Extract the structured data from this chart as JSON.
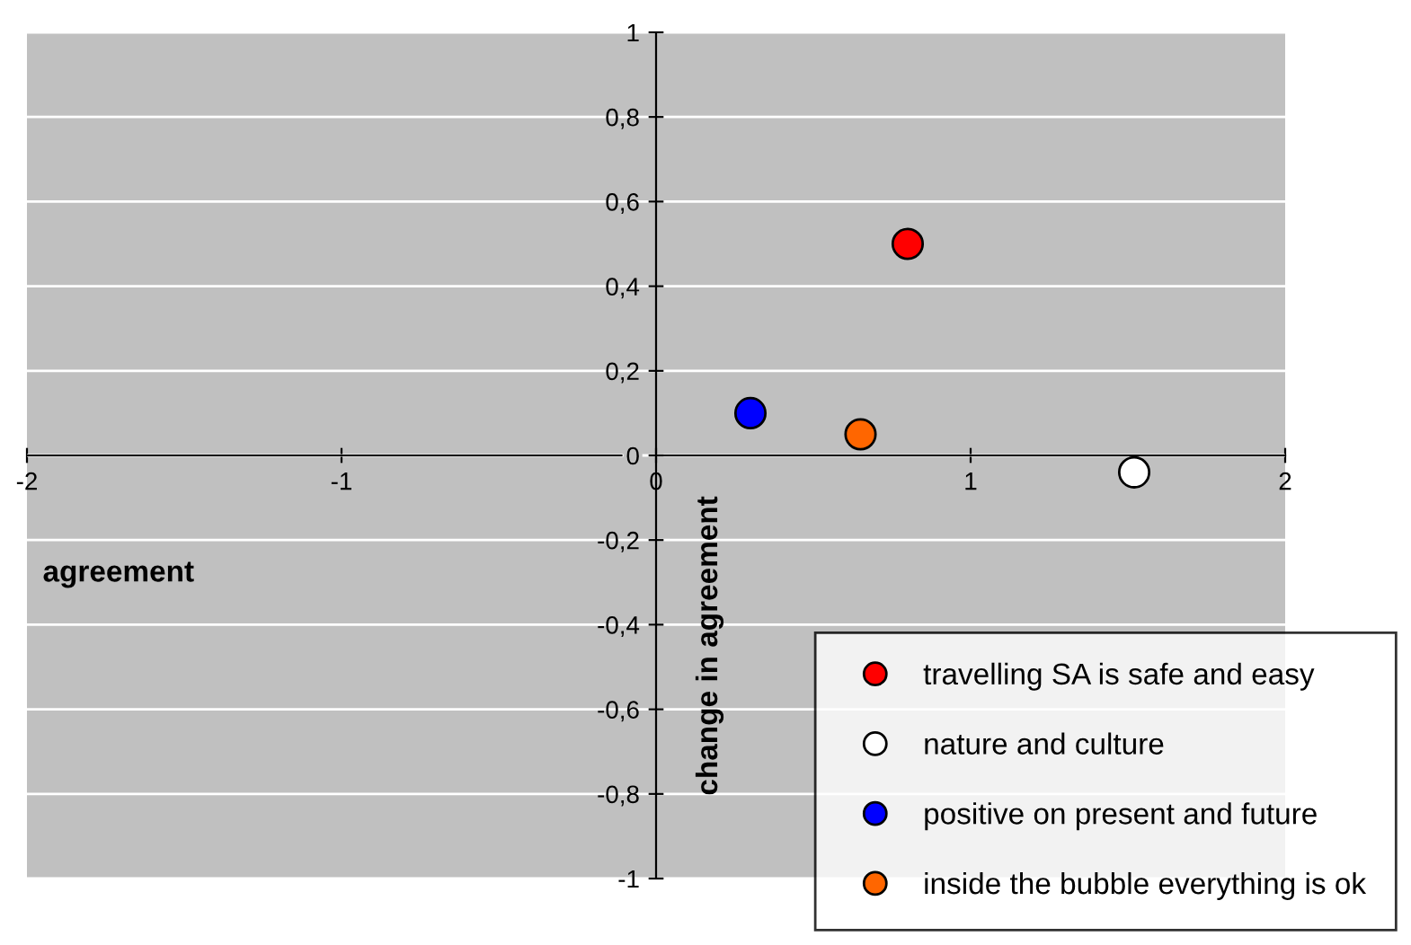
{
  "chart_data": {
    "type": "scatter",
    "xlabel": "agreement",
    "ylabel": "change in agreement",
    "xlim": [
      -2,
      2
    ],
    "ylim": [
      -1,
      1
    ],
    "xticks": [
      -2,
      -1,
      0,
      1,
      2
    ],
    "yticks": [
      {
        "value": -1,
        "label": "-1"
      },
      {
        "value": -0.8,
        "label": "-0,8"
      },
      {
        "value": -0.6,
        "label": "-0,6"
      },
      {
        "value": -0.4,
        "label": "-0,4"
      },
      {
        "value": -0.2,
        "label": "-0,2"
      },
      {
        "value": 0,
        "label": "0"
      },
      {
        "value": 0.2,
        "label": "0,2"
      },
      {
        "value": 0.4,
        "label": "0,4"
      },
      {
        "value": 0.6,
        "label": "0,6"
      },
      {
        "value": 0.8,
        "label": "0,8"
      },
      {
        "value": 1,
        "label": "1"
      }
    ],
    "series": [
      {
        "name": "travelling SA is safe and easy",
        "color": "#ff0000",
        "x": [
          0.8
        ],
        "values": [
          0.5
        ]
      },
      {
        "name": "nature and culture",
        "color": "#ffffff",
        "x": [
          1.52
        ],
        "values": [
          -0.04
        ]
      },
      {
        "name": "positive on present and future",
        "color": "#0000ff",
        "x": [
          0.3
        ],
        "values": [
          0.1
        ]
      },
      {
        "name": "inside the bubble everything is ok",
        "color": "#ff6600",
        "x": [
          0.65
        ],
        "values": [
          0.05
        ]
      }
    ],
    "marker": "circle",
    "grid": "y",
    "legend": "bottom right"
  }
}
